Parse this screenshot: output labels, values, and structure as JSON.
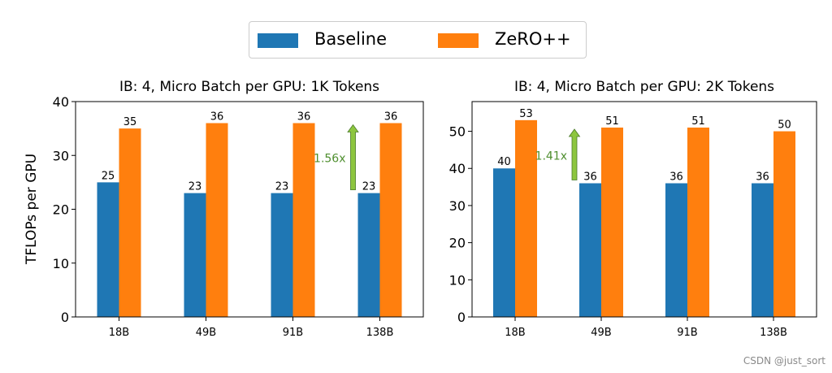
{
  "legend": {
    "baseline_label": "Baseline",
    "zero_label": "ZeRO++",
    "baseline_color": "#1f77b4",
    "zero_color": "#ff7f0e"
  },
  "ylabel": "TFLOPs per GPU",
  "watermark": "CSDN @just_sort",
  "chart_data": [
    {
      "type": "bar",
      "title": "IB: 4, Micro Batch per GPU: 1K Tokens",
      "categories": [
        "18B",
        "49B",
        "91B",
        "138B"
      ],
      "series": [
        {
          "name": "Baseline",
          "values": [
            25,
            23,
            23,
            23
          ],
          "value_labels": [
            "25",
            "23",
            "23",
            "23"
          ]
        },
        {
          "name": "ZeRO++",
          "values": [
            35,
            36,
            36,
            36
          ],
          "value_labels": [
            "35",
            "36",
            "36",
            "36"
          ]
        }
      ],
      "ylabel": "TFLOPs per GPU",
      "ylim": [
        0,
        40
      ],
      "yticks": [
        0,
        10,
        20,
        30,
        40
      ],
      "grid": false,
      "annotation": {
        "text": "1.56x",
        "category": "138B",
        "color": "#4f8f2f",
        "arrow_color": "#8dc63f"
      }
    },
    {
      "type": "bar",
      "title": "IB: 4, Micro Batch per GPU: 2K Tokens",
      "categories": [
        "18B",
        "49B",
        "91B",
        "138B"
      ],
      "series": [
        {
          "name": "Baseline",
          "values": [
            40,
            36,
            36,
            36
          ],
          "value_labels": [
            "40",
            "36",
            "36",
            "36"
          ]
        },
        {
          "name": "ZeRO++",
          "values": [
            53,
            51,
            51,
            50
          ],
          "value_labels": [
            "53",
            "51",
            "51",
            "50"
          ]
        }
      ],
      "ylabel": "",
      "ylim": [
        0,
        58
      ],
      "yticks": [
        0,
        10,
        20,
        30,
        40,
        50
      ],
      "grid": false,
      "annotation": {
        "text": "1.41x",
        "category": "49B",
        "color": "#4f8f2f",
        "arrow_color": "#8dc63f"
      }
    }
  ]
}
